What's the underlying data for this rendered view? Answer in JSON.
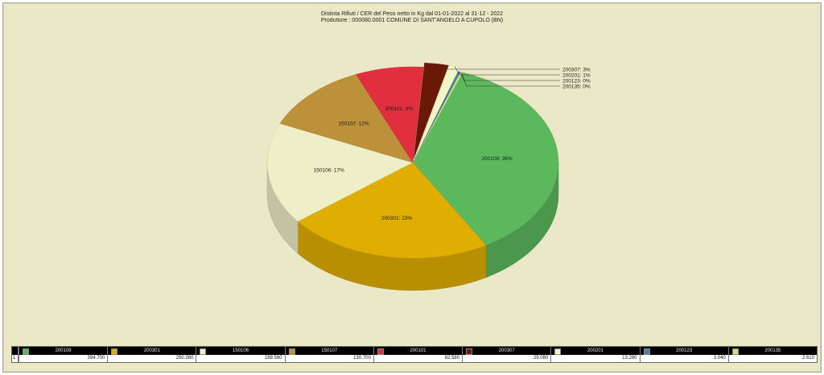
{
  "chart_data": {
    "type": "pie",
    "title": "Distinta Rifiuti / CER  del Peso netto in Kg dal 01-01-2022 al 31-12 - 2022",
    "subtitle": "Produttore : 000080.0001 COMUNE DI SANT'ANGELO A CUPOLO (BN)",
    "slices": [
      {
        "code": "200108",
        "pct_label": "200108: 36%",
        "value_text": "394.700",
        "value": 394700,
        "color": "#5cb85c"
      },
      {
        "code": "200301",
        "pct_label": "200301: 23%",
        "value_text": "250.380",
        "value": 250380,
        "color": "#e0ae00"
      },
      {
        "code": "150106",
        "pct_label": "150106: 17%",
        "value_text": "188.560",
        "value": 188560,
        "color": "#eeeec7"
      },
      {
        "code": "150107",
        "pct_label": "150107: 12%",
        "value_text": "130.700",
        "value": 130700,
        "color": "#bd903a"
      },
      {
        "code": "200101",
        "pct_label": "200101: 8%",
        "value_text": "82.580",
        "value": 82580,
        "color": "#e22f3f"
      },
      {
        "code": "200307",
        "pct_label": "200307: 3%",
        "value_text": "29.080",
        "value": 29080,
        "color": "#6a1908"
      },
      {
        "code": "200201",
        "pct_label": "200201: 1%",
        "value_text": "13.280",
        "value": 13280,
        "color": "#f2f6c4"
      },
      {
        "code": "200123",
        "pct_label": "200123: 0%",
        "value_text": "3.040",
        "value": 3040,
        "color": "#4a7ea0"
      },
      {
        "code": "200135",
        "pct_label": "200135: 0%",
        "value_text": "2.610",
        "value": 2610,
        "color": "#cde07e"
      }
    ],
    "row_label": "1"
  }
}
